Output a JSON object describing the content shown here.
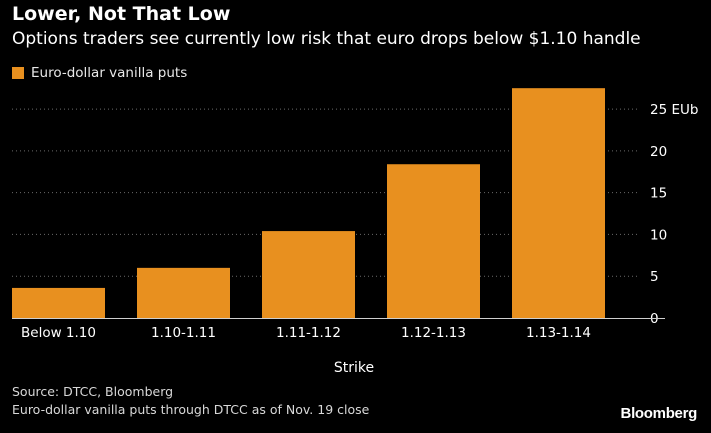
{
  "header": {
    "title": "Lower, Not That Low",
    "subtitle": "Options traders see currently low risk that euro drops below $1.10 handle"
  },
  "legend": {
    "label": "Euro-dollar vanilla puts",
    "color": "#e8901f"
  },
  "chart_data": {
    "type": "bar",
    "title": "Lower, Not That Low",
    "subtitle": "Options traders see currently low risk that euro drops below $1.10 handle",
    "xlabel": "Strike",
    "ylabel": "",
    "y_unit_label": "EUb",
    "categories": [
      "Below 1.10",
      "1.10-1.11",
      "1.11-1.12",
      "1.12-1.13",
      "1.13-1.14"
    ],
    "series": [
      {
        "name": "Euro-dollar vanilla puts",
        "values": [
          3.6,
          6.0,
          10.4,
          18.4,
          27.5
        ],
        "color": "#e8901f"
      }
    ],
    "ylim": [
      0,
      28
    ],
    "yticks": [
      0,
      5,
      10,
      15,
      20,
      25
    ],
    "ytick_labels": [
      "0",
      "5",
      "10",
      "15",
      "20",
      "25 EUb"
    ],
    "y_axis_position": "right",
    "grid": "horizontal dotted",
    "legend_position": "top-left"
  },
  "footer": {
    "source": "Source: DTCC, Bloomberg",
    "note": "Euro-dollar vanilla puts through DTCC as of Nov. 19 close",
    "brand": "Bloomberg"
  }
}
